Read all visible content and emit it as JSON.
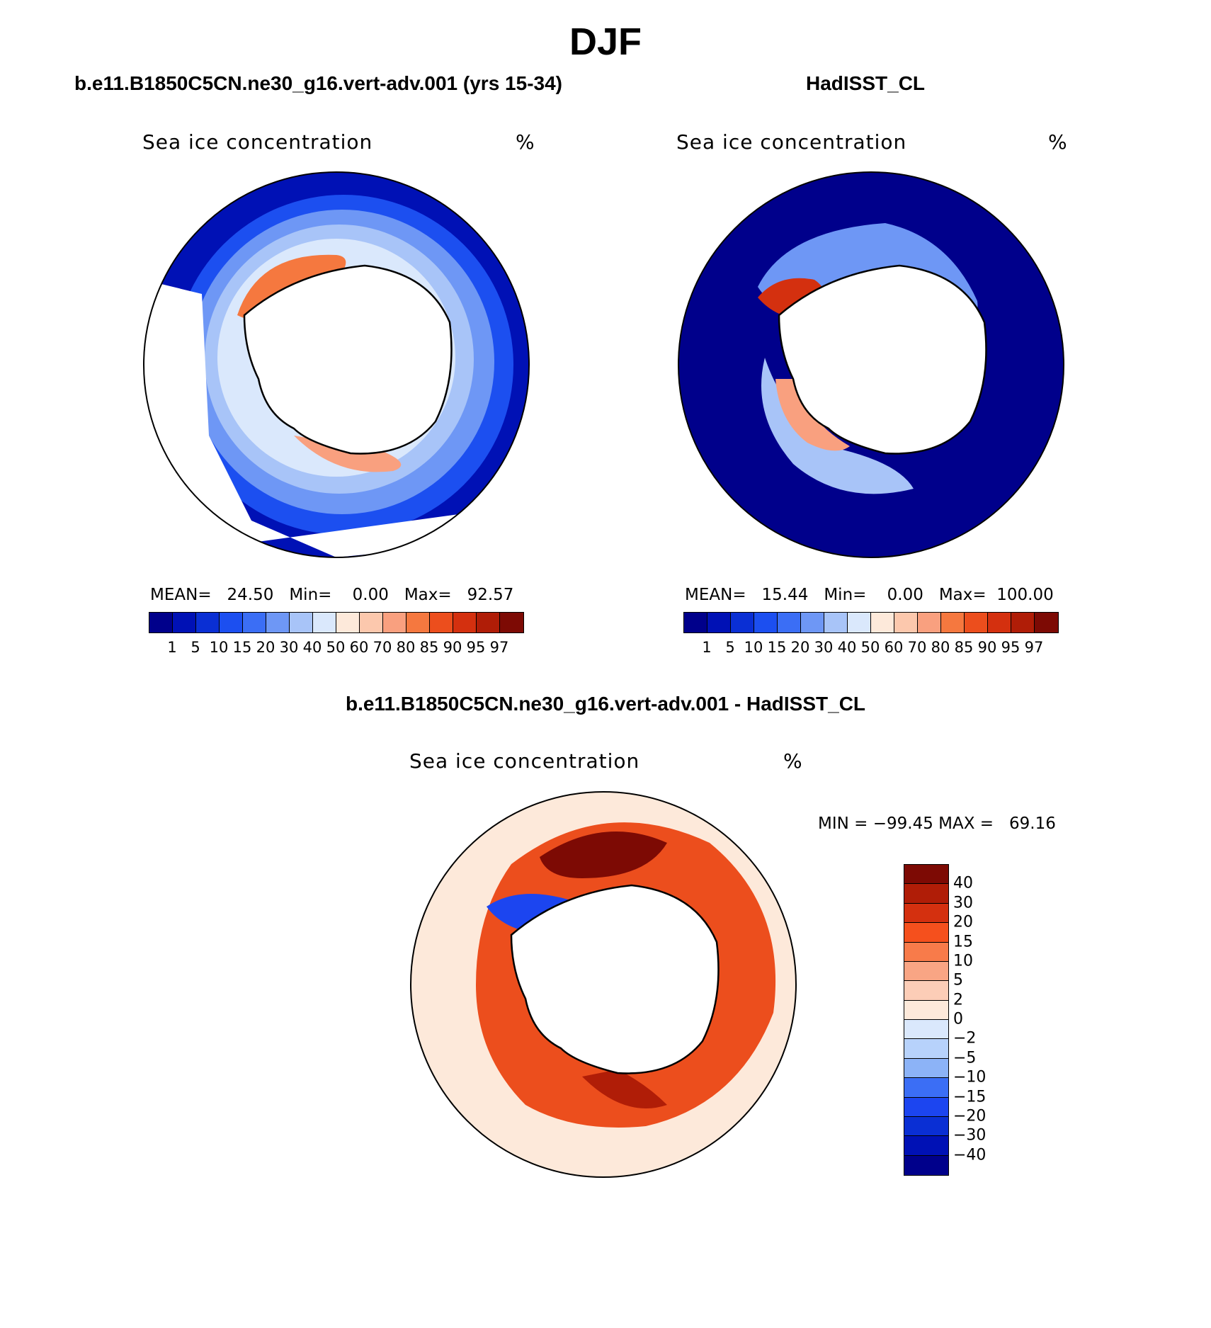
{
  "title": "DJF",
  "variable_label": "Sea ice concentration",
  "units_label": "%",
  "panels": {
    "model": {
      "title": "b.e11.B1850C5CN.ne30_g16.vert-adv.001 (yrs 15-34)",
      "stats": {
        "mean_label": "MEAN=",
        "mean": "24.50",
        "min_label": "Min=",
        "min": "0.00",
        "max_label": "Max=",
        "max": "92.57"
      }
    },
    "obs": {
      "title": "HadISST_CL",
      "stats": {
        "mean_label": "MEAN=",
        "mean": "15.44",
        "min_label": "Min=",
        "min": "0.00",
        "max_label": "Max=",
        "max": "100.00"
      }
    },
    "diff": {
      "title": "b.e11.B1850C5CN.ne30_g16.vert-adv.001 - HadISST_CL",
      "range_text": "MIN = −99.45 MAX =   69.16"
    }
  },
  "colorbar_levels": [
    "1",
    "5",
    "10",
    "15",
    "20",
    "30",
    "40",
    "50",
    "60",
    "70",
    "80",
    "85",
    "90",
    "95",
    "97"
  ],
  "colorbar_colors": [
    "#00008b",
    "#0011b5",
    "#0a2fd4",
    "#1c4ff0",
    "#3b6ef5",
    "#6e97f5",
    "#a8c4f8",
    "#dae8fc",
    "#fde9da",
    "#fcc8ad",
    "#f9a07f",
    "#f5783f",
    "#ec4e1d",
    "#d4300f",
    "#b01d07",
    "#7d0a04"
  ],
  "diff_levels": [
    "40",
    "30",
    "20",
    "15",
    "10",
    "5",
    "2",
    "0",
    "−2",
    "−5",
    "−10",
    "−15",
    "−20",
    "−30",
    "−40"
  ],
  "diff_colors": [
    "#7d0a04",
    "#b01d07",
    "#d4300f",
    "#f5501d",
    "#f87b4a",
    "#f9a584",
    "#fccdb7",
    "#fde9da",
    "#dae8fc",
    "#b7d2fb",
    "#8cb3f7",
    "#3b6ef5",
    "#1c45f0",
    "#0a2fd4",
    "#0011b5",
    "#00008b"
  ],
  "land_color": "#ffffff",
  "missing_color": "#ffffff"
}
